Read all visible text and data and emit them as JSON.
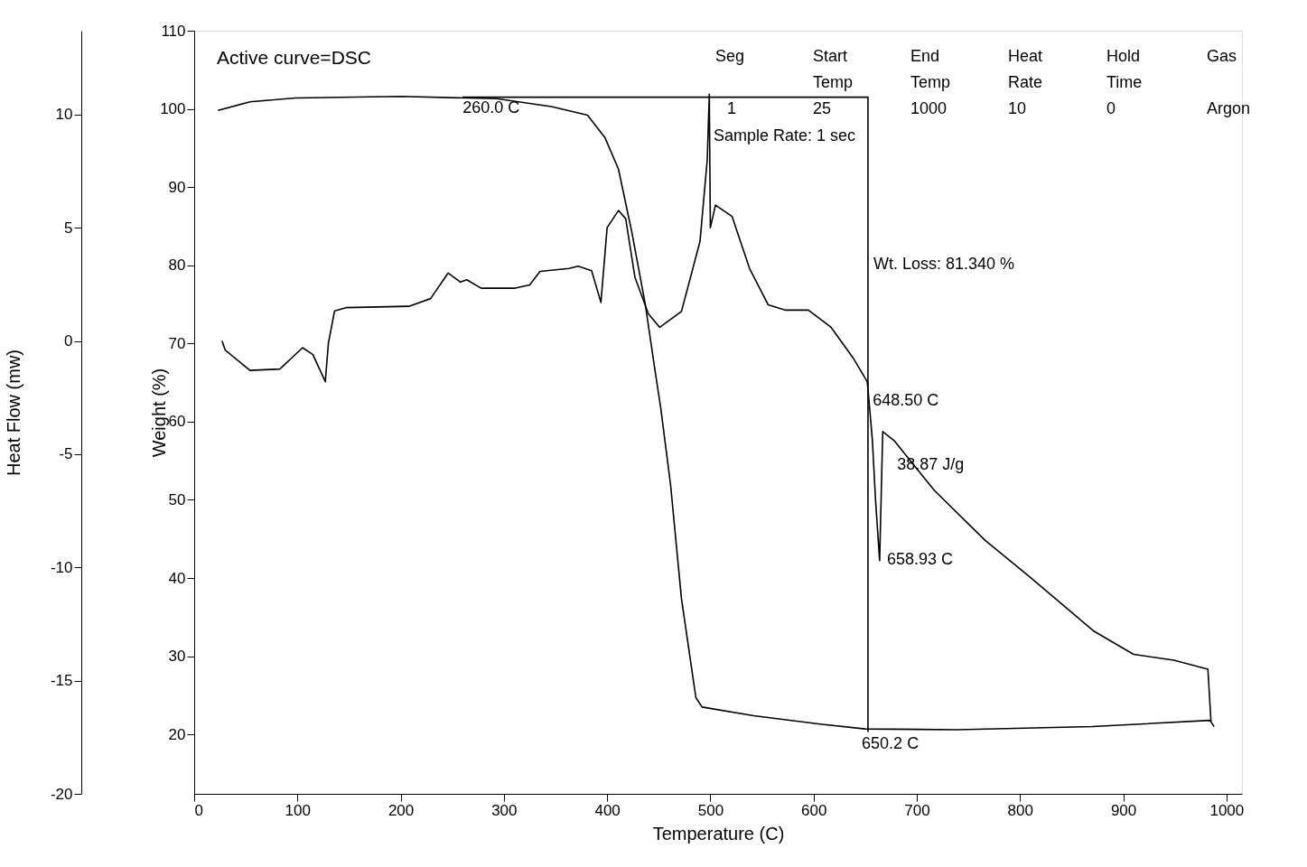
{
  "chart_data": {
    "type": "line",
    "xlabel": "Temperature (C)",
    "ylabel": "Weight (%)",
    "y2label": "Heat Flow (mw)",
    "xlim": [
      0,
      1015
    ],
    "xticks": [
      0,
      100,
      200,
      300,
      400,
      500,
      600,
      700,
      800,
      900,
      1000
    ],
    "ylim": [
      12.4,
      110
    ],
    "yticks": [
      20,
      30,
      40,
      50,
      60,
      70,
      80,
      90,
      100,
      110
    ],
    "y2lim": [
      -20,
      13.7
    ],
    "y2ticks": [
      -20,
      -15,
      -10,
      -5,
      0,
      5,
      10
    ],
    "grid": false,
    "marker": "none",
    "line_style": "solid",
    "series": [
      {
        "color": "#000000",
        "x": [
          23,
          54,
          98,
          200,
          293,
          346,
          381,
          398,
          411,
          424,
          437,
          446,
          452,
          461.5,
          472,
          486,
          492,
          542,
          608,
          650,
          739,
          870,
          984,
          988
        ],
        "values": [
          99.8,
          100.9,
          101.4,
          101.6,
          101.3,
          100.3,
          99.2,
          96.3,
          92.3,
          84.2,
          75,
          66.9,
          61.7,
          51.9,
          37.4,
          24.7,
          23.5,
          22.4,
          21.3,
          20.7,
          20.6,
          21,
          21.8,
          21
        ]
      },
      {
        "color": "#000000",
        "x": [
          260,
          652.7,
          652.7
        ],
        "values": [
          101.5,
          101.5,
          20.3
        ]
      },
      {
        "color": "#000000",
        "axis": "y2",
        "x": [
          27,
          30,
          54,
          83,
          105,
          115,
          127,
          130,
          136,
          147,
          208,
          229,
          246,
          258,
          264,
          278,
          311,
          325,
          335,
          363,
          372,
          385,
          394,
          400,
          411,
          418,
          427,
          440,
          451,
          472,
          490,
          497,
          499,
          500,
          505,
          521,
          538,
          556,
          573,
          595,
          617,
          639,
          652,
          654,
          657,
          660,
          664,
          667,
          678,
          717,
          766,
          809,
          871,
          910,
          949,
          982,
          985
        ],
        "values": [
          0.0,
          -0.4,
          -1.3,
          -1.24,
          -0.3,
          -0.6,
          -1.8,
          -0.1,
          1.33,
          1.47,
          1.53,
          1.87,
          3.0,
          2.6,
          2.7,
          2.33,
          2.33,
          2.47,
          3.07,
          3.2,
          3.3,
          3.1,
          1.7,
          5.0,
          5.76,
          5.4,
          2.8,
          1.2,
          0.6,
          1.3,
          4.4,
          8.0,
          10.9,
          5.0,
          6.0,
          5.5,
          3.2,
          1.6,
          1.36,
          1.36,
          0.6,
          -0.8,
          -1.8,
          -2.8,
          -4.4,
          -7.0,
          -9.7,
          -4.0,
          -4.4,
          -6.6,
          -8.8,
          -10.4,
          -12.8,
          -13.84,
          -14.1,
          -14.5,
          -16.8
        ]
      }
    ],
    "annotations": [
      "Active curve=DSC",
      "Seg",
      "Start\nTemp",
      "End\nTemp",
      "Heat\nRate",
      "Hold\nTime",
      "Gas",
      "1",
      "25",
      "1000",
      "10",
      "0",
      "Argon",
      "Sample Rate: 1 sec",
      "Wt. Loss: 81.340 %",
      {
        "text": "260.0 C",
        "x": 260,
        "y": 101.5
      },
      {
        "text": "648.50 C",
        "x": 648.5,
        "y": 62.6
      },
      {
        "text": "38.87 J/g",
        "x": 660,
        "y": 53.8
      },
      {
        "text": "658.93 C",
        "x": 658.93,
        "y": 42.3
      },
      {
        "text": "650.2 C",
        "x": 650.2,
        "y": 20.3
      }
    ]
  }
}
